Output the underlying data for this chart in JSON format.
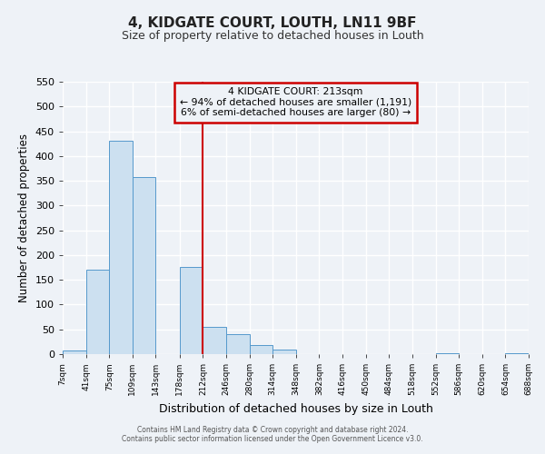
{
  "title": "4, KIDGATE COURT, LOUTH, LN11 9BF",
  "subtitle": "Size of property relative to detached houses in Louth",
  "xlabel": "Distribution of detached houses by size in Louth",
  "ylabel": "Number of detached properties",
  "bar_edges": [
    7,
    41,
    75,
    109,
    143,
    178,
    212,
    246,
    280,
    314,
    348,
    382,
    416,
    450,
    484,
    518,
    552,
    586,
    620,
    654,
    688
  ],
  "bar_heights": [
    8,
    170,
    430,
    357,
    0,
    176,
    55,
    40,
    18,
    10,
    0,
    0,
    0,
    0,
    0,
    0,
    1,
    0,
    0,
    1
  ],
  "bar_color": "#cce0f0",
  "bar_edge_color": "#5599cc",
  "vline_x": 212,
  "vline_color": "#cc0000",
  "annotation_title": "4 KIDGATE COURT: 213sqm",
  "annotation_line1": "← 94% of detached houses are smaller (1,191)",
  "annotation_line2": "6% of semi-detached houses are larger (80) →",
  "annotation_box_color": "#cc0000",
  "ylim": [
    0,
    550
  ],
  "yticks": [
    0,
    50,
    100,
    150,
    200,
    250,
    300,
    350,
    400,
    450,
    500,
    550
  ],
  "tick_labels": [
    "7sqm",
    "41sqm",
    "75sqm",
    "109sqm",
    "143sqm",
    "178sqm",
    "212sqm",
    "246sqm",
    "280sqm",
    "314sqm",
    "348sqm",
    "382sqm",
    "416sqm",
    "450sqm",
    "484sqm",
    "518sqm",
    "552sqm",
    "586sqm",
    "620sqm",
    "654sqm",
    "688sqm"
  ],
  "background_color": "#eef2f7",
  "grid_color": "#ffffff",
  "footer1": "Contains HM Land Registry data © Crown copyright and database right 2024.",
  "footer2": "Contains public sector information licensed under the Open Government Licence v3.0."
}
